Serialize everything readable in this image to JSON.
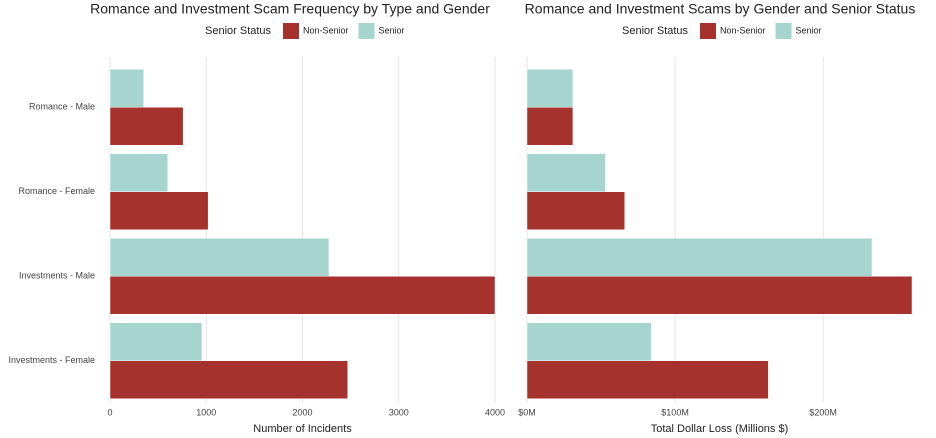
{
  "chart_data": [
    {
      "type": "barh",
      "title": "Romance and Investment Scam Frequency by Type and Gender",
      "legend_title": "Senior Status",
      "categories": [
        "Romance - Male",
        "Romance - Female",
        "Investments - Male",
        "Investments - Female"
      ],
      "series": [
        {
          "name": "Non-Senior",
          "color": "#a5322d",
          "values": [
            760,
            1020,
            4000,
            2470
          ]
        },
        {
          "name": "Senior",
          "color": "#a6d5cf",
          "values": [
            350,
            600,
            2275,
            955
          ]
        }
      ],
      "xlabel": "Number of Incidents",
      "xlim": [
        0,
        4000
      ],
      "xticks": [
        0,
        1000,
        2000,
        3000,
        4000
      ],
      "grid": true
    },
    {
      "type": "barh",
      "title": "Romance and Investment Scams by Gender and Senior Status",
      "legend_title": "Senior Status",
      "series": [
        {
          "name": "Non-Senior",
          "color": "#a5322d",
          "values": [
            31,
            66,
            260,
            163
          ]
        },
        {
          "name": "Senior",
          "color": "#a6d5cf",
          "values": [
            31,
            53,
            233,
            84
          ]
        }
      ],
      "xlabel": "Total Dollar Loss (Millions $)",
      "xlim": [
        0,
        260
      ],
      "xticks": [
        {
          "value": 0,
          "label": "$0M"
        },
        {
          "value": 100,
          "label": "$100M"
        },
        {
          "value": 200,
          "label": "$200M"
        }
      ],
      "grid": true
    }
  ]
}
